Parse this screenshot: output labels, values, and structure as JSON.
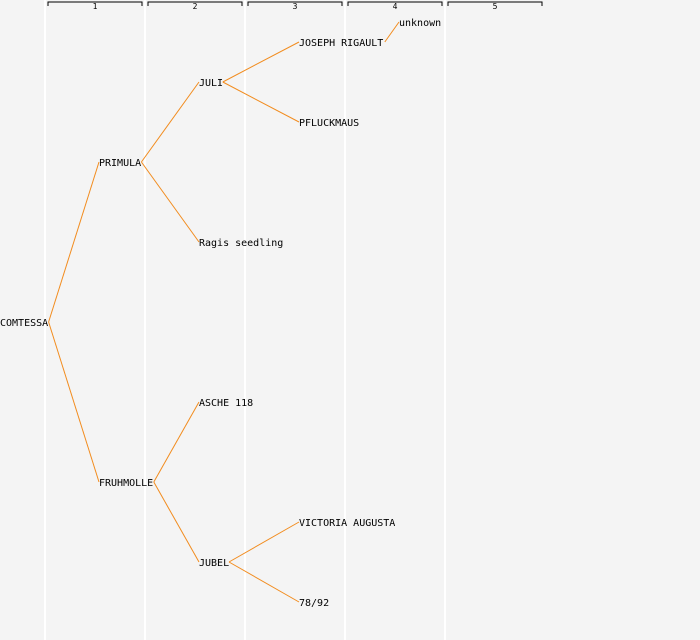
{
  "columns": [
    "1",
    "2",
    "3",
    "4",
    "5"
  ],
  "colors": {
    "edge": "#f28c1e",
    "gridline": "#ffffff",
    "background": "#f4f4f4"
  },
  "nodes": [
    {
      "id": "comtessa",
      "label": "COMTESSA",
      "gen": 0
    },
    {
      "id": "primula",
      "label": "PRIMULA",
      "gen": 1,
      "parent": "comtessa"
    },
    {
      "id": "fruhmolle",
      "label": "FRUHMOLLE",
      "gen": 1,
      "parent": "comtessa"
    },
    {
      "id": "juli",
      "label": "JULI",
      "gen": 2,
      "parent": "primula"
    },
    {
      "id": "ragis",
      "label": "Ragis seedling",
      "gen": 2,
      "parent": "primula"
    },
    {
      "id": "asche",
      "label": "ASCHE 118",
      "gen": 2,
      "parent": "fruhmolle"
    },
    {
      "id": "jubel",
      "label": "JUBEL",
      "gen": 2,
      "parent": "fruhmolle"
    },
    {
      "id": "joseph",
      "label": "JOSEPH RIGAULT",
      "gen": 3,
      "parent": "juli"
    },
    {
      "id": "pfluck",
      "label": "PFLUCKMAUS",
      "gen": 3,
      "parent": "juli"
    },
    {
      "id": "victoria",
      "label": "VICTORIA AUGUSTA",
      "gen": 3,
      "parent": "jubel"
    },
    {
      "id": "n7892",
      "label": "78/92",
      "gen": 3,
      "parent": "jubel"
    },
    {
      "id": "unknown",
      "label": "unknown",
      "gen": 4,
      "parent": "joseph"
    }
  ]
}
